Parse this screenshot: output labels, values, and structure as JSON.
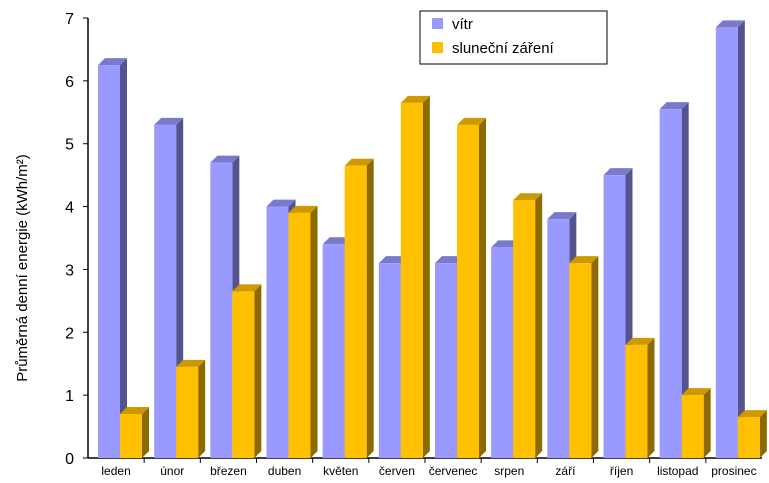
{
  "chart_data": {
    "type": "bar",
    "title": "",
    "xlabel": "",
    "ylabel": "Průměrná denní energie (kWh/m²)",
    "ylim": [
      0,
      7
    ],
    "yticks": [
      0,
      1,
      2,
      3,
      4,
      5,
      6,
      7
    ],
    "categories": [
      "leden",
      "únor",
      "březen",
      "duben",
      "květen",
      "červen",
      "červenec",
      "srpen",
      "září",
      "říjen",
      "listopad",
      "prosinec"
    ],
    "series": [
      {
        "name": "vítr",
        "color": "#9999ff",
        "values": [
          6.25,
          5.3,
          4.7,
          4.0,
          3.4,
          3.1,
          3.1,
          3.35,
          3.8,
          4.5,
          5.55,
          6.85
        ]
      },
      {
        "name": "sluneční záření",
        "color": "#ffc000",
        "values": [
          0.7,
          1.45,
          2.65,
          3.9,
          4.65,
          5.65,
          5.3,
          4.1,
          3.1,
          1.8,
          1.0,
          0.65
        ]
      }
    ],
    "legend": "top-right",
    "grid": false
  }
}
